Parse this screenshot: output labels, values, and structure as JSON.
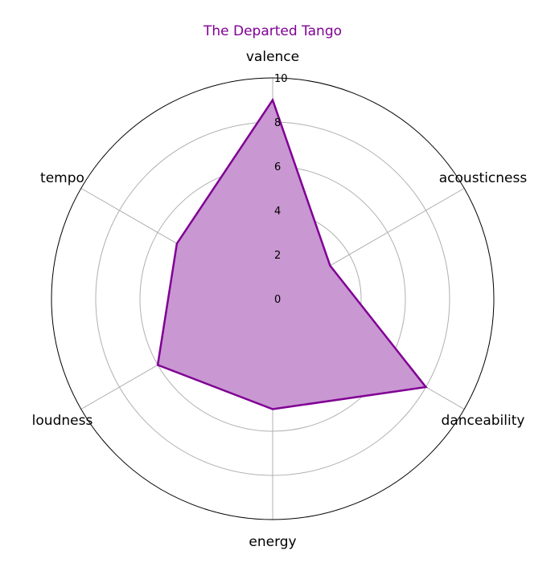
{
  "chart_data": {
    "type": "radar",
    "title": "The Departed Tango",
    "axes": [
      "valence",
      "acousticness",
      "danceability",
      "energy",
      "loudness",
      "tempo"
    ],
    "values": [
      9,
      3,
      8,
      5,
      6,
      5
    ],
    "rlim": [
      0,
      10
    ],
    "ticks": [
      0,
      2,
      4,
      6,
      8,
      10
    ],
    "grid": true,
    "colors": {
      "line": "#800094",
      "fill": "#c997d2",
      "grid": "#b0b0b0",
      "outer_ring": "#000000",
      "title": "#800094"
    }
  }
}
